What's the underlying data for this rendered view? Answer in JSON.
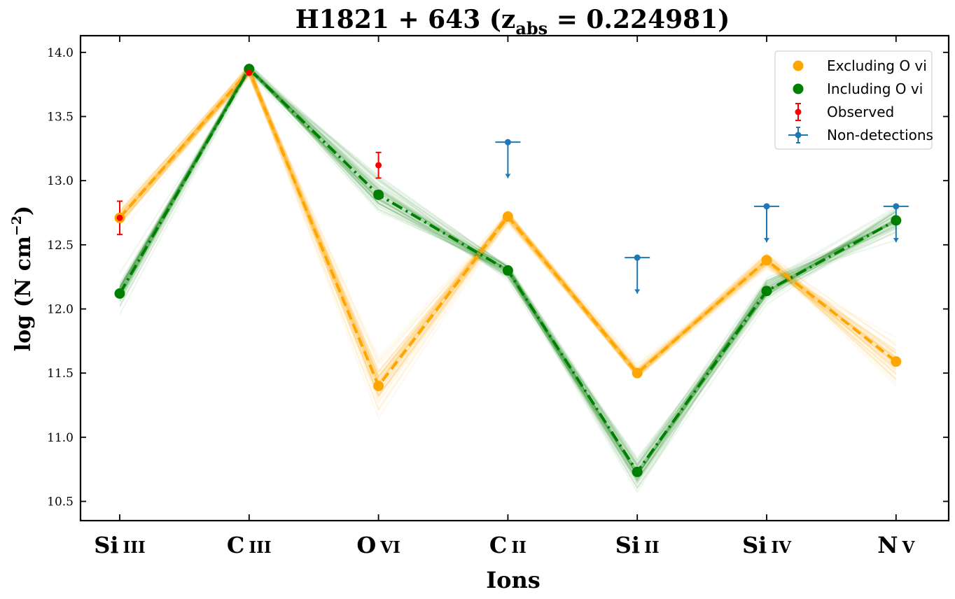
{
  "chart_data": {
    "type": "line",
    "title": "H1821 + 643 (z",
    "title_sub": "abs",
    "title_value": " = 0.224981)",
    "xlabel": "Ions",
    "ylabel": "log (N cm",
    "ylabel_sup": "−2",
    "ylabel_close": ")",
    "categories": [
      "Si III",
      "C III",
      "O VI",
      "C II",
      "Si II",
      "Si IV",
      "N V"
    ],
    "category_display": [
      {
        "main": "Si",
        "ion": "III"
      },
      {
        "main": "C",
        "ion": "III"
      },
      {
        "main": "O",
        "ion": "VI"
      },
      {
        "main": "C",
        "ion": "II"
      },
      {
        "main": "Si",
        "ion": "II"
      },
      {
        "main": "Si",
        "ion": "IV"
      },
      {
        "main": "N",
        "ion": "V"
      }
    ],
    "ylim": [
      10.35,
      14.13
    ],
    "yticks": [
      "10.5",
      "11.0",
      "11.5",
      "12.0",
      "12.5",
      "13.0",
      "13.5",
      "14.0"
    ],
    "ytick_values": [
      10.5,
      11.0,
      11.5,
      12.0,
      12.5,
      13.0,
      13.5,
      14.0
    ],
    "grid": false,
    "legend_position": "top-right",
    "series": [
      {
        "name": "Excluding O VI",
        "legend_label": "Excluding O vi",
        "color": "#ffa500",
        "values": [
          12.71,
          13.86,
          11.4,
          12.72,
          11.5,
          12.38,
          11.59
        ],
        "style": "dashed",
        "spread": [
          0.06,
          0.04,
          0.16,
          0.04,
          0.05,
          0.05,
          0.14
        ]
      },
      {
        "name": "Including O VI",
        "legend_label": "Including O vi",
        "color": "#008000",
        "values": [
          12.12,
          13.87,
          12.89,
          12.3,
          10.73,
          12.14,
          12.69
        ],
        "style": "dashdot",
        "spread": [
          0.08,
          0.03,
          0.12,
          0.05,
          0.1,
          0.06,
          0.1
        ]
      }
    ],
    "observed": {
      "name": "Observed",
      "color": "#ff0000",
      "points": [
        {
          "category": "Si III",
          "value": 12.71,
          "err": 0.13
        },
        {
          "category": "C III",
          "value": 13.84,
          "err": 0.0
        },
        {
          "category": "O VI",
          "value": 13.12,
          "err": 0.1
        }
      ]
    },
    "non_detections": {
      "name": "Non-detections",
      "color": "#1f77b4",
      "points": [
        {
          "category": "C II",
          "value": 13.3,
          "arrow_to": 13.02
        },
        {
          "category": "Si II",
          "value": 12.4,
          "arrow_to": 12.12
        },
        {
          "category": "Si IV",
          "value": 12.8,
          "arrow_to": 12.52
        },
        {
          "category": "N V",
          "value": 12.8,
          "arrow_to": 12.52
        }
      ]
    }
  }
}
